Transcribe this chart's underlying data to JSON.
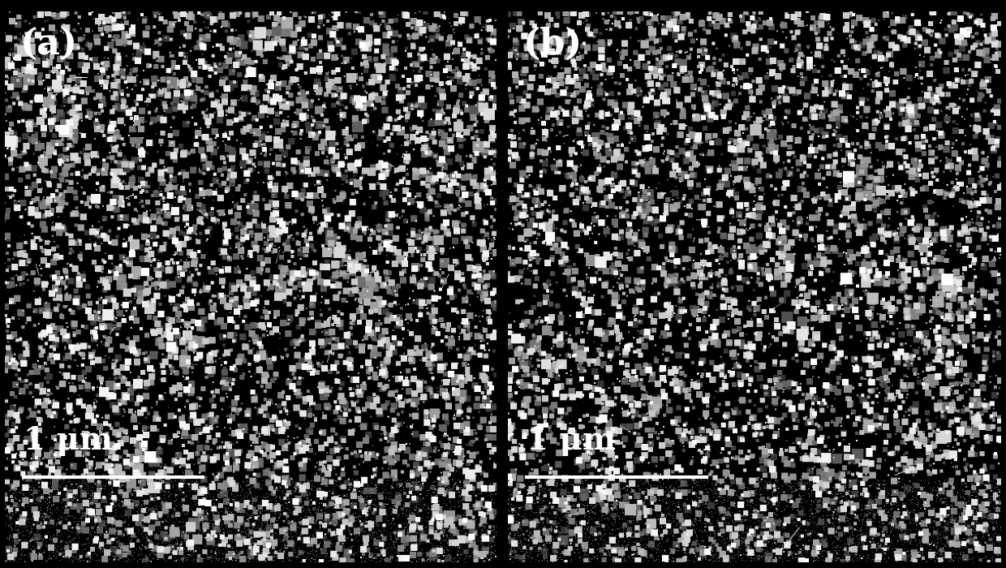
{
  "fig_width": 12.4,
  "fig_height": 7.0,
  "dpi": 100,
  "bg_color": "#000000",
  "label_a": "(a)",
  "label_b": "(b)",
  "scale_label": "1 μm",
  "label_color": "#ffffff",
  "label_fontsize": 32,
  "scale_fontsize": 28,
  "scalebar_color": "#ffffff",
  "scalebar_linewidth": 3,
  "border_color": "#ffffff",
  "border_linewidth": 1.5,
  "seed_a": 42,
  "seed_b": 137,
  "noise_density_a": 0.018,
  "noise_density_b": 0.016,
  "cluster_count_a": 35,
  "cluster_count_b": 32
}
